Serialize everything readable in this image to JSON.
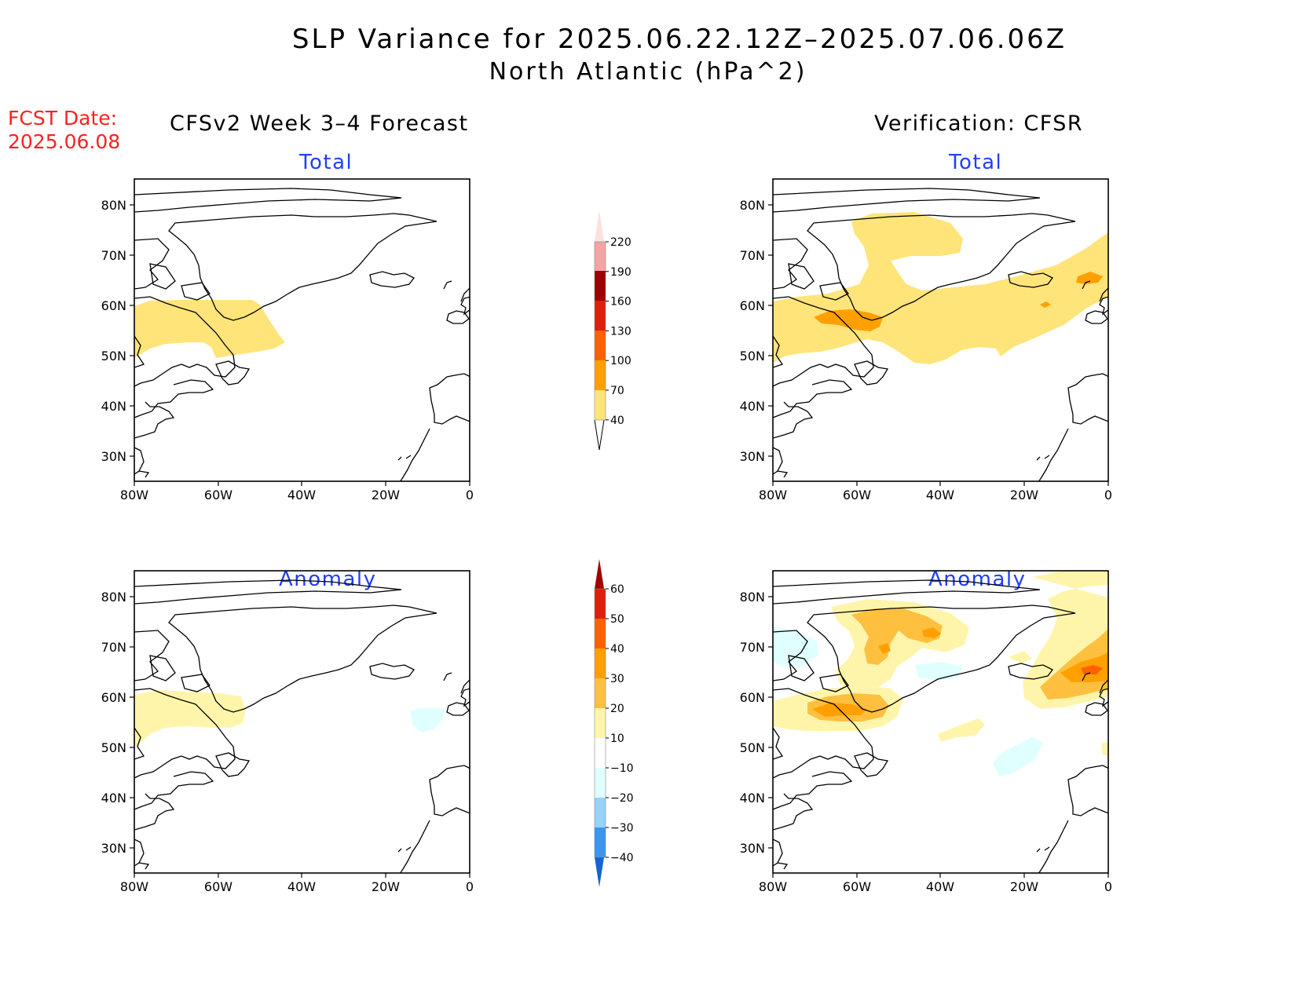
{
  "header": {
    "title": "SLP Variance for 2025.06.22.12Z–2025.07.06.06Z",
    "subtitle": "North Atlantic (hPa^2)",
    "fcst_label": "FCST Date:",
    "fcst_date": "2025.06.08"
  },
  "columns": {
    "left": "CFSv2 Week 3–4 Forecast",
    "right": "Verification: CFSR"
  },
  "panels": {
    "total": "Total",
    "anomaly": "Anomaly"
  },
  "axes": {
    "lat_ticks": [
      "80N",
      "70N",
      "60N",
      "50N",
      "40N",
      "30N"
    ],
    "lon_ticks": [
      "80W",
      "60W",
      "40W",
      "20W",
      "0"
    ]
  },
  "colorbars": {
    "total": {
      "labels": [
        "220",
        "190",
        "160",
        "130",
        "100",
        "70",
        "40"
      ],
      "colors": [
        "#fde0dc",
        "#f4a4a4",
        "#a00000",
        "#e01e0a",
        "#ff6000",
        "#ffa000",
        "#ffe47a"
      ]
    },
    "anomaly": {
      "labels": [
        "60",
        "50",
        "40",
        "30",
        "20",
        "10",
        "−10",
        "−20",
        "−30",
        "−40"
      ],
      "colors": [
        "#a00000",
        "#e01e0a",
        "#ff6000",
        "#ffa000",
        "#ffc040",
        "#fff5aa",
        "#ffffff",
        "#e0ffff",
        "#96d2fa",
        "#3c96f0",
        "#1464d2"
      ]
    }
  },
  "colors": {
    "fcst_red": "#ff2020",
    "panel_title_blue": "#1f3fff",
    "light_yellow": "#ffe47a",
    "orange": "#ffa000",
    "pale_yellow": "#fff5aa",
    "light_orange": "#ffc040",
    "pale_cyan": "#e0ffff"
  }
}
